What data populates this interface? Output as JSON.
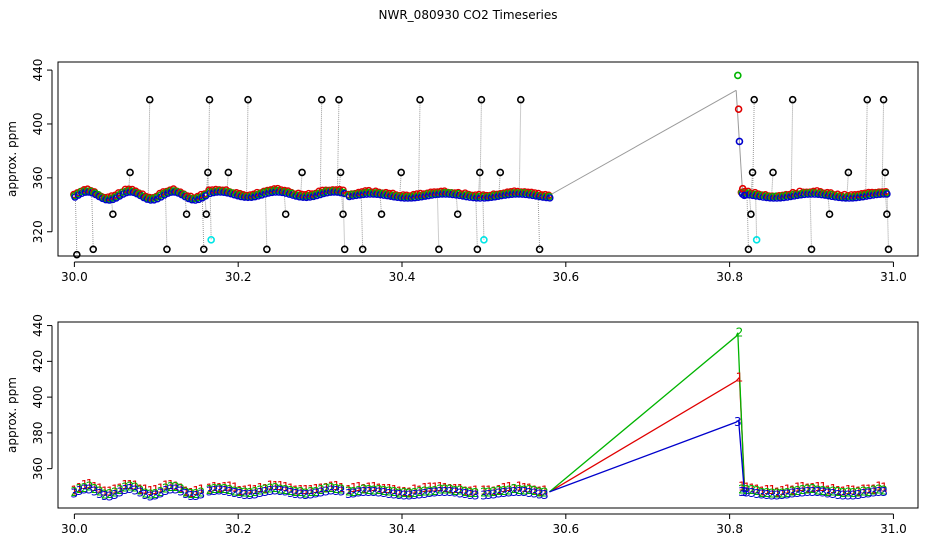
{
  "title": "NWR_080930  CO2 Timeseries",
  "colors": {
    "black": "#000000",
    "red": "#e00000",
    "green": "#00b400",
    "blue": "#0000cc",
    "cyan": "#00e5e5",
    "gray": "#9a9a9a"
  },
  "chart_data": [
    {
      "type": "scatter",
      "title": "",
      "xlabel": "",
      "ylabel": "approx. ppm",
      "xlim": [
        29.98,
        31.03
      ],
      "ylim": [
        302,
        446
      ],
      "x_ticks": [
        30.0,
        30.2,
        30.4,
        30.6,
        30.8,
        31.0
      ],
      "x_tick_labels": [
        "30.0",
        "30.2",
        "30.4",
        "30.6",
        "30.8",
        "31.0"
      ],
      "y_ticks": [
        320,
        360,
        400,
        440
      ],
      "y_tick_labels": [
        "320",
        "360",
        "400",
        "440"
      ],
      "flag_points_black": [
        {
          "x": 30.003,
          "y": 303
        },
        {
          "x": 30.023,
          "y": 307
        },
        {
          "x": 30.047,
          "y": 333
        },
        {
          "x": 30.068,
          "y": 364
        },
        {
          "x": 30.092,
          "y": 418
        },
        {
          "x": 30.113,
          "y": 307
        },
        {
          "x": 30.137,
          "y": 333
        },
        {
          "x": 30.158,
          "y": 307
        },
        {
          "x": 30.161,
          "y": 333
        },
        {
          "x": 30.163,
          "y": 364
        },
        {
          "x": 30.165,
          "y": 418
        },
        {
          "x": 30.188,
          "y": 364
        },
        {
          "x": 30.212,
          "y": 418
        },
        {
          "x": 30.235,
          "y": 307
        },
        {
          "x": 30.258,
          "y": 333
        },
        {
          "x": 30.278,
          "y": 364
        },
        {
          "x": 30.302,
          "y": 418
        },
        {
          "x": 30.323,
          "y": 418
        },
        {
          "x": 30.325,
          "y": 364
        },
        {
          "x": 30.328,
          "y": 333
        },
        {
          "x": 30.33,
          "y": 307
        },
        {
          "x": 30.352,
          "y": 307
        },
        {
          "x": 30.375,
          "y": 333
        },
        {
          "x": 30.399,
          "y": 364
        },
        {
          "x": 30.422,
          "y": 418
        },
        {
          "x": 30.445,
          "y": 307
        },
        {
          "x": 30.468,
          "y": 333
        },
        {
          "x": 30.492,
          "y": 307
        },
        {
          "x": 30.495,
          "y": 364
        },
        {
          "x": 30.497,
          "y": 418
        },
        {
          "x": 30.52,
          "y": 364
        },
        {
          "x": 30.545,
          "y": 418
        },
        {
          "x": 30.568,
          "y": 307
        },
        {
          "x": 30.823,
          "y": 307
        },
        {
          "x": 30.826,
          "y": 333
        },
        {
          "x": 30.828,
          "y": 364
        },
        {
          "x": 30.83,
          "y": 418
        },
        {
          "x": 30.853,
          "y": 364
        },
        {
          "x": 30.877,
          "y": 418
        },
        {
          "x": 30.9,
          "y": 307
        },
        {
          "x": 30.922,
          "y": 333
        },
        {
          "x": 30.945,
          "y": 364
        },
        {
          "x": 30.968,
          "y": 418
        },
        {
          "x": 30.988,
          "y": 418
        },
        {
          "x": 30.99,
          "y": 364
        },
        {
          "x": 30.992,
          "y": 333
        },
        {
          "x": 30.994,
          "y": 307
        }
      ],
      "flag_points_cyan": [
        {
          "x": 30.167,
          "y": 314
        },
        {
          "x": 30.5,
          "y": 314
        },
        {
          "x": 30.833,
          "y": 314
        }
      ],
      "spike_points": [
        {
          "x": 30.81,
          "y": 436,
          "color": "green"
        },
        {
          "x": 30.811,
          "y": 411,
          "color": "red"
        },
        {
          "x": 30.812,
          "y": 387,
          "color": "blue"
        },
        {
          "x": 30.816,
          "y": 352,
          "color": "red"
        },
        {
          "x": 30.818,
          "y": 347,
          "color": "blue"
        }
      ],
      "segments": [
        [
          30.0,
          30.16
        ],
        [
          30.165,
          30.33
        ],
        [
          30.335,
          30.495
        ],
        [
          30.5,
          30.58
        ],
        [
          30.815,
          30.993
        ]
      ],
      "series_note": "Dense red/green/blue circle markers near 346-352 ppm along segments; gray connector rises from (30.58, 347) to (30.808, 425)."
    },
    {
      "type": "line",
      "title": "",
      "xlabel": "",
      "ylabel": "approx. ppm",
      "xlim": [
        29.98,
        31.03
      ],
      "ylim": [
        338,
        442
      ],
      "x_ticks": [
        30.0,
        30.2,
        30.4,
        30.6,
        30.8,
        31.0
      ],
      "x_tick_labels": [
        "30.0",
        "30.2",
        "30.4",
        "30.6",
        "30.8",
        "31.0"
      ],
      "y_ticks": [
        360,
        380,
        400,
        420,
        440
      ],
      "y_tick_labels": [
        "360",
        "380",
        "400",
        "420",
        "440"
      ],
      "series": [
        {
          "name": "1",
          "color": "red",
          "spike": [
            [
              30.58,
              347
            ],
            [
              30.808,
              409
            ],
            [
              30.812,
              411
            ],
            [
              30.818,
              352
            ]
          ]
        },
        {
          "name": "2",
          "color": "green",
          "spike": [
            [
              30.58,
              347
            ],
            [
              30.808,
              434
            ],
            [
              30.81,
              436
            ],
            [
              30.818,
              349
            ]
          ]
        },
        {
          "name": "3",
          "color": "blue",
          "spike": [
            [
              30.58,
              347
            ],
            [
              30.808,
              386
            ],
            [
              30.811,
              387
            ],
            [
              30.818,
              347
            ]
          ]
        }
      ],
      "spike_labels": [
        {
          "text": "2",
          "x": 30.812,
          "y": 436,
          "color": "green"
        },
        {
          "text": "1",
          "x": 30.812,
          "y": 411,
          "color": "red"
        },
        {
          "text": "3",
          "x": 30.81,
          "y": 386,
          "color": "blue"
        },
        {
          "text": "3",
          "x": 30.818,
          "y": 347,
          "color": "blue"
        }
      ],
      "segments": [
        [
          30.0,
          30.16
        ],
        [
          30.165,
          30.33
        ],
        [
          30.335,
          30.495
        ],
        [
          30.5,
          30.58
        ],
        [
          30.815,
          30.993
        ]
      ],
      "series_note": "Baseline markers are overlapping digits '1','2','3' near 346-351 ppm along segments."
    }
  ]
}
